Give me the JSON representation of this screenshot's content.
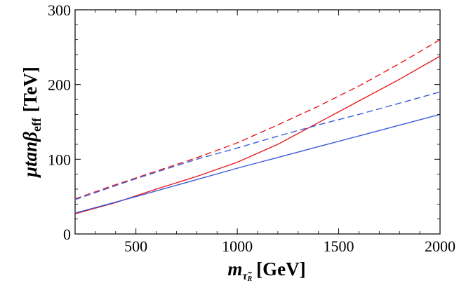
{
  "chart_data": {
    "type": "line",
    "title": "",
    "xlabel": {
      "main": "m",
      "sub": "τ̃",
      "subsub": "R",
      "unit": "[GeV]"
    },
    "ylabel": {
      "main": "μtanβ",
      "sub": "eff",
      "unit": "[TeV]"
    },
    "xlim": [
      200,
      2000
    ],
    "ylim": [
      0,
      300
    ],
    "xticks": [
      500,
      1000,
      1500,
      2000
    ],
    "yticks": [
      0,
      100,
      200,
      300
    ],
    "xtick_labels": [
      "500",
      "1000",
      "1500",
      "2000"
    ],
    "ytick_labels": [
      "0",
      "100",
      "200",
      "300"
    ],
    "grid": false,
    "series": [
      {
        "name": "red-solid",
        "color": "#e8191d",
        "dash": "solid",
        "x": [
          200,
          400,
          600,
          800,
          1000,
          1200,
          1400,
          1600,
          1800,
          2000
        ],
        "y": [
          27,
          42,
          60,
          77,
          96,
          120,
          149,
          178,
          207,
          238
        ]
      },
      {
        "name": "red-dashed",
        "color": "#e8191d",
        "dash": "dashed",
        "x": [
          200,
          400,
          600,
          800,
          1000,
          1200,
          1400,
          1600,
          1800,
          2000
        ],
        "y": [
          47,
          66,
          84,
          102,
          122,
          146,
          171,
          198,
          228,
          260
        ]
      },
      {
        "name": "blue-solid",
        "color": "#3b5bdb",
        "dash": "solid",
        "x": [
          200,
          500,
          1000,
          1500,
          2000
        ],
        "y": [
          28,
          50,
          88,
          124,
          160
        ]
      },
      {
        "name": "blue-dashed",
        "color": "#3b5bdb",
        "dash": "dashed",
        "x": [
          200,
          500,
          800,
          1000,
          1200,
          1400,
          1600,
          1800,
          2000
        ],
        "y": [
          46,
          74,
          100,
          115,
          131,
          146,
          160,
          175,
          190
        ]
      }
    ]
  }
}
